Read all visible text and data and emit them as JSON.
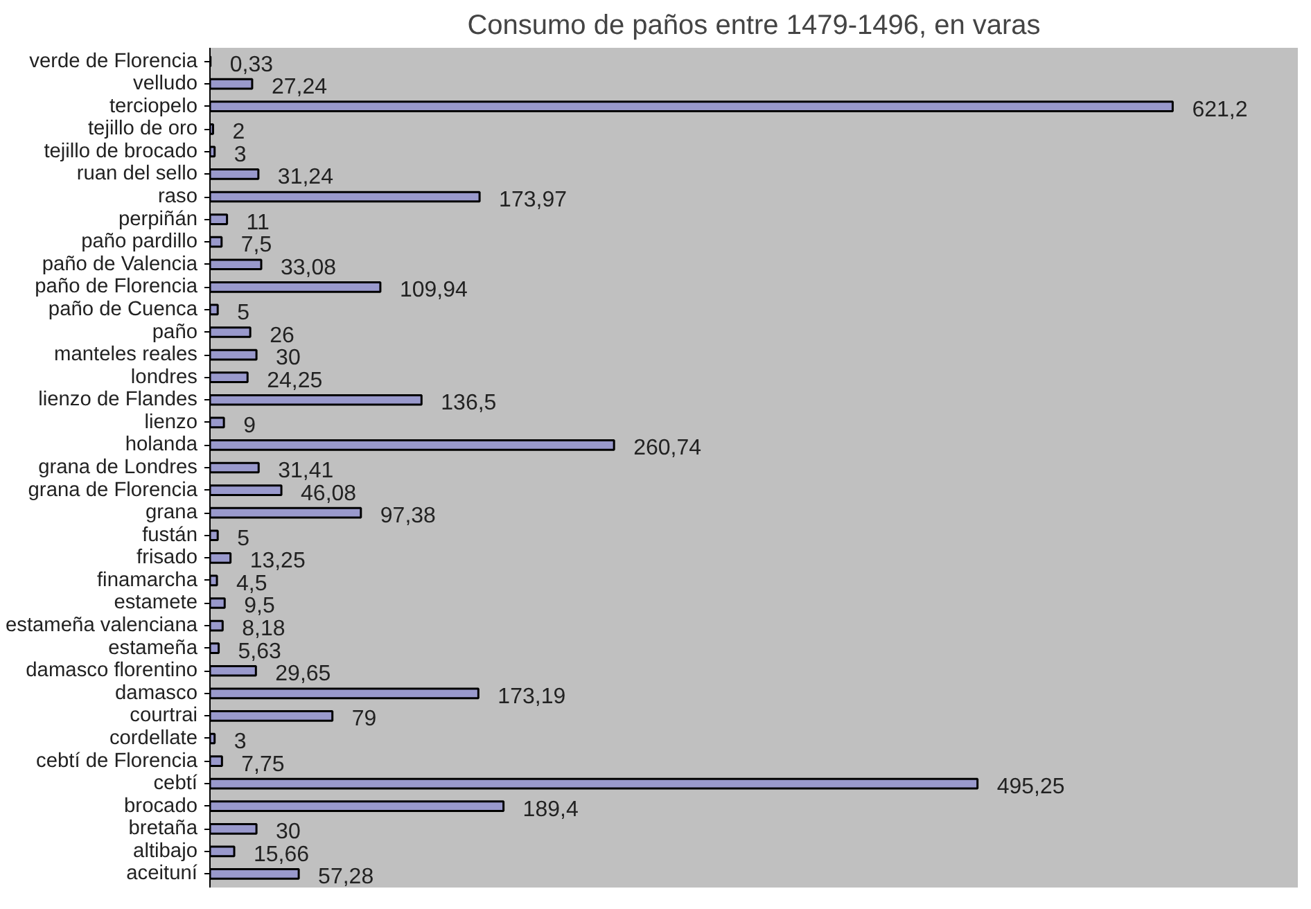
{
  "chart_data": {
    "type": "bar",
    "orientation": "horizontal",
    "title": "Consumo de paños entre 1479-1496, en varas",
    "categories": [
      "verde de Florencia",
      "velludo",
      "terciopelo",
      "tejillo de oro",
      "tejillo de brocado",
      "ruan del sello",
      "raso",
      "perpiñán",
      "paño pardillo",
      "paño de Valencia",
      "paño de Florencia",
      "paño de Cuenca",
      "paño",
      "manteles reales",
      "londres",
      "lienzo de Flandes",
      "lienzo",
      "holanda",
      "grana de Londres",
      "grana de Florencia",
      "grana",
      "fustán",
      "frisado",
      "finamarcha",
      "estamete",
      "estameña valenciana",
      "estameña",
      "damasco florentino",
      "damasco",
      "courtrai",
      "cordellate",
      "cebtí de Florencia",
      "cebtí",
      "brocado",
      "bretaña",
      "altibajo",
      "aceituní"
    ],
    "values": [
      0.33,
      27.24,
      621.2,
      2,
      3,
      31.24,
      173.97,
      11,
      7.5,
      33.08,
      109.94,
      5,
      26,
      30,
      24.25,
      136.5,
      9,
      260.74,
      31.41,
      46.08,
      97.38,
      5,
      13.25,
      4.5,
      9.5,
      8.18,
      5.63,
      29.65,
      173.19,
      79,
      3,
      7.75,
      495.25,
      189.4,
      30,
      15.66,
      57.28
    ],
    "value_labels": [
      "0,33",
      "27,24",
      "621,2",
      "2",
      "3",
      "31,24",
      "173,97",
      "11",
      "7,5",
      "33,08",
      "109,94",
      "5",
      "26",
      "30",
      "24,25",
      "136,5",
      "9",
      "260,74",
      "31,41",
      "46,08",
      "97,38",
      "5",
      "13,25",
      "4,5",
      "9,5",
      "8,18",
      "5,63",
      "29,65",
      "173,19",
      "79",
      "3",
      "7,75",
      "495,25",
      "189,4",
      "30",
      "15,66",
      "57,28"
    ],
    "color": "#9999cc",
    "tick_labels": "y",
    "grid": false
  }
}
